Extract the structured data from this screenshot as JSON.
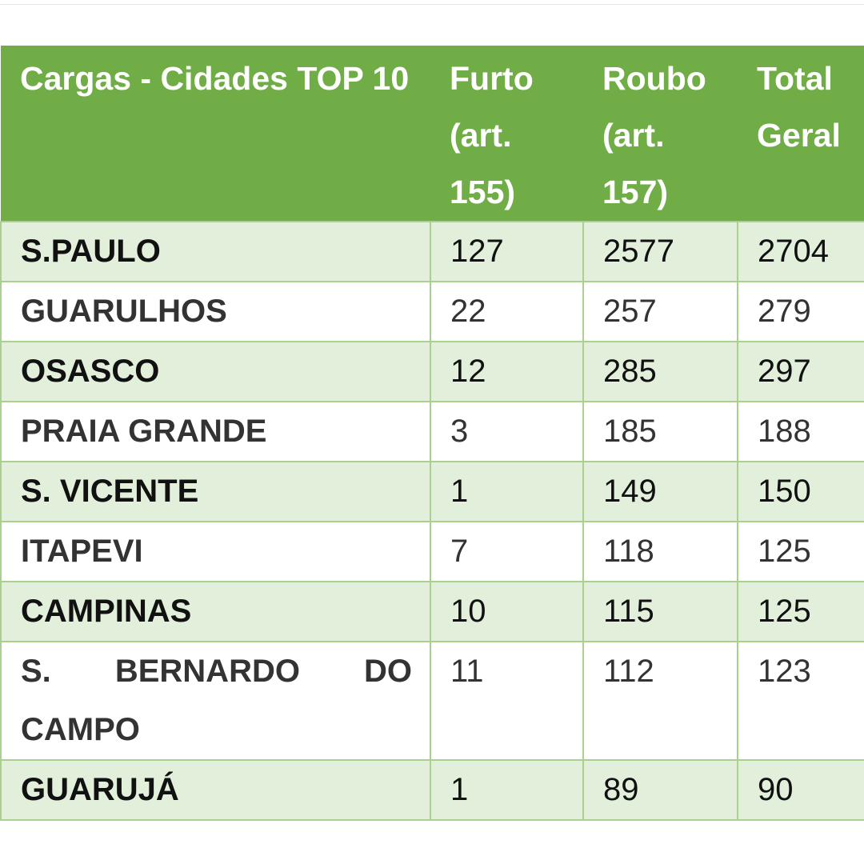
{
  "colors": {
    "header_bg": "#70AD47",
    "band_bg": "#E2EFDA",
    "border": "#A9D08E"
  },
  "table": {
    "headers": [
      "Cargas - Cidades TOP 10",
      "Furto (art. 155)",
      "Roubo (art. 157)",
      "Total Geral"
    ],
    "rows": [
      {
        "city": "S.PAULO",
        "furto": "127",
        "roubo": "2577",
        "total": "2704"
      },
      {
        "city": "GUARULHOS",
        "furto": "22",
        "roubo": "257",
        "total": "279"
      },
      {
        "city": "OSASCO",
        "furto": "12",
        "roubo": "285",
        "total": "297"
      },
      {
        "city": "PRAIA GRANDE",
        "furto": "3",
        "roubo": "185",
        "total": "188"
      },
      {
        "city": "S. VICENTE",
        "furto": "1",
        "roubo": "149",
        "total": "150"
      },
      {
        "city": "ITAPEVI",
        "furto": "7",
        "roubo": "118",
        "total": "125"
      },
      {
        "city": "CAMPINAS",
        "furto": "10",
        "roubo": "115",
        "total": "125"
      },
      {
        "city": "S. BERNARDO DO CAMPO",
        "furto": "11",
        "roubo": "112",
        "total": "123"
      },
      {
        "city": "GUARUJÁ",
        "furto": "1",
        "roubo": "89",
        "total": "90"
      }
    ]
  }
}
